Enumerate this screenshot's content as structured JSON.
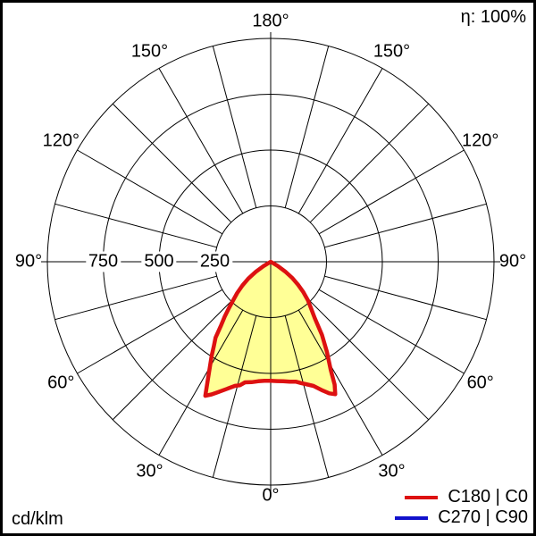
{
  "chart_data": {
    "type": "polar",
    "description": "Luminous intensity distribution curve (photometric polar diagram)",
    "unit_label": "cd/klm",
    "efficiency_label": "η: 100%",
    "grid_step_deg": 15,
    "r_max": 1000,
    "angle_ticks": [
      {
        "gamma": 0,
        "label": "0°"
      },
      {
        "gamma": 30,
        "label": "30°"
      },
      {
        "gamma": 60,
        "label": "60°"
      },
      {
        "gamma": 90,
        "label": "90°"
      },
      {
        "gamma": 120,
        "label": "120°"
      },
      {
        "gamma": 150,
        "label": "150°"
      },
      {
        "gamma": 180,
        "label": "180°"
      }
    ],
    "radial_ticks": [
      {
        "value": 250,
        "label": "250"
      },
      {
        "value": 500,
        "label": "500"
      },
      {
        "value": 750,
        "label": "750"
      },
      {
        "value": 1000,
        "label": ""
      }
    ],
    "legend": [
      {
        "label": "C180 | C0",
        "color": "#dd1111"
      },
      {
        "label": "C270 | C90",
        "color": "#1111cc"
      }
    ],
    "curve": {
      "plane": "C180 | C0",
      "stroke": "#dd1111",
      "fill": "#ffff96",
      "points": [
        [
          -62,
          0
        ],
        [
          -59,
          38
        ],
        [
          -56,
          80
        ],
        [
          -53,
          125
        ],
        [
          -50,
          165
        ],
        [
          -47,
          205
        ],
        [
          -44,
          245
        ],
        [
          -42,
          280
        ],
        [
          -40,
          320
        ],
        [
          -38,
          360
        ],
        [
          -36,
          420
        ],
        [
          -34,
          455
        ],
        [
          -32,
          500
        ],
        [
          -30,
          545
        ],
        [
          -28,
          600
        ],
        [
          -26,
          668
        ],
        [
          -24,
          650
        ],
        [
          -22,
          630
        ],
        [
          -19,
          602
        ],
        [
          -16,
          578
        ],
        [
          -14,
          570
        ],
        [
          -12,
          552
        ],
        [
          -9,
          546
        ],
        [
          -6,
          538
        ],
        [
          -3,
          534
        ],
        [
          0,
          533
        ],
        [
          3,
          535
        ],
        [
          6,
          538
        ],
        [
          9,
          544
        ],
        [
          12,
          549
        ],
        [
          14,
          560
        ],
        [
          16,
          570
        ],
        [
          19,
          588
        ],
        [
          22,
          622
        ],
        [
          24,
          645
        ],
        [
          26,
          660
        ],
        [
          27.5,
          620
        ],
        [
          29,
          555
        ],
        [
          32,
          475
        ],
        [
          35,
          400
        ],
        [
          38,
          320
        ],
        [
          41,
          275
        ],
        [
          44,
          240
        ],
        [
          47,
          200
        ],
        [
          50,
          160
        ],
        [
          53,
          122
        ],
        [
          56,
          78
        ],
        [
          59,
          36
        ],
        [
          62,
          0
        ]
      ]
    }
  }
}
